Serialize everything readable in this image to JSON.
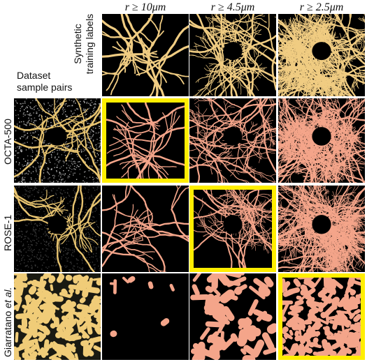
{
  "figure": {
    "column_headers": [
      "r ≥ 10μm",
      "r ≥ 4.5μm",
      "r ≥ 2.5μm"
    ],
    "synthetic_label": [
      "Synthetic",
      "training labels"
    ],
    "dataset_label": [
      "Dataset",
      "sample pairs"
    ],
    "rows": [
      {
        "label": "OCTA-500",
        "highlight_col": 0
      },
      {
        "label": "ROSE-1",
        "highlight_col": 1
      },
      {
        "label_main": "Giarratano ",
        "label_italic": "et al.",
        "highlight_col": 2
      }
    ],
    "colors": {
      "synthetic": "#f0cc82",
      "segmentation": "#f4a58a",
      "raw_vessel": "#e8c470",
      "highlight": "#ffee00"
    }
  }
}
